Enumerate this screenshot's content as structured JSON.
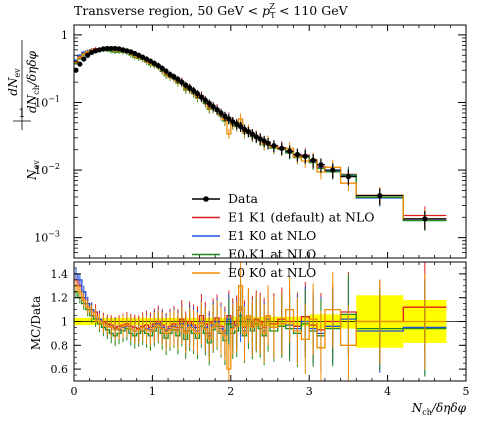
{
  "chart_data": {
    "type": "line",
    "title": "Transverse region, 50 GeV < p_T^Z < 110 GeV",
    "title_parts": {
      "prefix": "Transverse region, 50 GeV < ",
      "var": "p",
      "sub": "T",
      "sup": "Z",
      "suffix": " < 110 GeV"
    },
    "xlabel": "N_ch/δηδφ",
    "xlabel_parts": {
      "n": "N",
      "sub": "ch",
      "rest": "/δηδφ"
    },
    "ylabel": "1/N_ev dN_ev/dN_ch/δηδφ",
    "ylabel_parts": {
      "one": "1",
      "nev": "N",
      "nev_sub": "ev",
      "dnev": "dN",
      "dnev_sub": "ev",
      "dnch": "dN",
      "dnch_sub": "ch",
      "dnch_rest": "/δηδφ"
    },
    "ratio_ylabel": "MC/Data",
    "xlim": [
      0,
      5
    ],
    "ylim": [
      0.0005,
      1.4
    ],
    "ratio_ylim": [
      0.5,
      1.5
    ],
    "yscale": "log",
    "xticks": [
      "0",
      "1",
      "2",
      "3",
      "4",
      "5"
    ],
    "yticks": [
      {
        "value": 1,
        "label": "1"
      },
      {
        "value": 0.1,
        "label": "10",
        "exp": "−1"
      },
      {
        "value": 0.01,
        "label": "10",
        "exp": "−2"
      },
      {
        "value": 0.001,
        "label": "10",
        "exp": "−3"
      }
    ],
    "ratio_yticks": [
      "0.6",
      "0.8",
      "1",
      "1.2",
      "1.4"
    ],
    "legend": {
      "position": "center-right"
    },
    "bin_edges": [
      0.0,
      0.05,
      0.1,
      0.15,
      0.2,
      0.25,
      0.3,
      0.35,
      0.4,
      0.45,
      0.5,
      0.55,
      0.6,
      0.65,
      0.7,
      0.75,
      0.8,
      0.85,
      0.9,
      0.95,
      1.0,
      1.05,
      1.1,
      1.15,
      1.2,
      1.25,
      1.3,
      1.35,
      1.4,
      1.45,
      1.5,
      1.55,
      1.6,
      1.65,
      1.7,
      1.75,
      1.8,
      1.85,
      1.9,
      1.95,
      2.0,
      2.05,
      2.1,
      2.15,
      2.2,
      2.25,
      2.3,
      2.35,
      2.4,
      2.45,
      2.5,
      2.6,
      2.7,
      2.8,
      2.9,
      3.0,
      3.1,
      3.2,
      3.4,
      3.6,
      4.2,
      4.75
    ],
    "series": [
      {
        "name": "Data",
        "style": "points",
        "color": "#000000",
        "values": [
          0.3,
          0.37,
          0.44,
          0.5,
          0.55,
          0.58,
          0.6,
          0.62,
          0.63,
          0.63,
          0.63,
          0.62,
          0.6,
          0.58,
          0.56,
          0.53,
          0.5,
          0.47,
          0.44,
          0.41,
          0.38,
          0.35,
          0.32,
          0.29,
          0.26,
          0.24,
          0.22,
          0.2,
          0.18,
          0.165,
          0.15,
          0.135,
          0.12,
          0.108,
          0.097,
          0.087,
          0.078,
          0.07,
          0.063,
          0.057,
          0.052,
          0.048,
          0.044,
          0.04,
          0.037,
          0.034,
          0.031,
          0.029,
          0.027,
          0.025,
          0.023,
          0.021,
          0.019,
          0.017,
          0.016,
          0.014,
          0.012,
          0.01,
          0.008,
          0.0042,
          0.0019
        ]
      },
      {
        "name": "E1 K1 (default) at NLO",
        "style": "histo",
        "color": "#dd1e1e",
        "ratio": [
          1.35,
          1.3,
          1.2,
          1.15,
          1.1,
          1.08,
          1.02,
          1.0,
          0.98,
          0.97,
          0.95,
          0.96,
          0.97,
          0.98,
          0.96,
          0.95,
          0.94,
          0.96,
          0.97,
          0.95,
          0.98,
          1.0,
          0.97,
          0.93,
          0.96,
          0.98,
          0.95,
          1.02,
          0.92,
          1.0,
          0.97,
          0.95,
          1.05,
          0.98,
          0.9,
          1.0,
          1.03,
          0.96,
          0.92,
          1.05,
          0.98,
          1.0,
          1.1,
          0.95,
          1.05,
          0.98,
          1.02,
          1.0,
          0.95,
          1.05,
          0.98,
          1.02,
          1.0,
          0.96,
          1.04,
          0.97,
          0.93,
          1.0,
          1.08,
          1.0,
          1.12
        ]
      },
      {
        "name": "E1 K0 at NLO",
        "style": "histo",
        "color": "#1e4fdd",
        "ratio": [
          1.4,
          1.35,
          1.25,
          1.15,
          1.1,
          1.05,
          1.02,
          0.98,
          0.96,
          0.95,
          0.94,
          0.93,
          0.95,
          0.96,
          0.94,
          0.92,
          0.93,
          0.95,
          0.94,
          0.93,
          0.96,
          0.98,
          0.95,
          0.92,
          0.94,
          0.96,
          0.93,
          0.98,
          0.9,
          0.97,
          0.95,
          0.92,
          1.0,
          0.95,
          0.88,
          0.97,
          1.0,
          0.94,
          0.9,
          1.02,
          0.95,
          0.97,
          1.05,
          0.92,
          1.02,
          0.96,
          1.0,
          0.97,
          0.92,
          1.02,
          0.95,
          0.98,
          0.97,
          0.94,
          1.0,
          0.94,
          0.9,
          0.96,
          1.02,
          0.92,
          0.95
        ]
      },
      {
        "name": "E0 K1 at NLO",
        "style": "histo",
        "color": "#1e8a1e",
        "ratio": [
          1.25,
          1.2,
          1.15,
          1.1,
          1.05,
          1.02,
          0.98,
          0.95,
          0.93,
          0.9,
          0.88,
          0.9,
          0.92,
          0.94,
          0.9,
          0.88,
          0.9,
          0.92,
          0.9,
          0.88,
          0.92,
          0.95,
          0.9,
          0.86,
          0.9,
          0.93,
          0.88,
          0.95,
          0.85,
          0.92,
          0.9,
          0.86,
          0.96,
          0.9,
          0.82,
          0.93,
          0.96,
          0.9,
          0.84,
          0.98,
          0.9,
          0.92,
          1.12,
          0.88,
          1.0,
          0.92,
          0.98,
          0.94,
          0.88,
          1.0,
          0.92,
          0.96,
          0.94,
          0.9,
          0.98,
          0.92,
          0.88,
          0.94,
          1.06,
          0.94,
          0.94
        ]
      },
      {
        "name": "E0 K0 at NLO",
        "style": "histo",
        "color": "#f08c00",
        "ratio": [
          1.3,
          1.25,
          1.18,
          1.12,
          1.08,
          1.05,
          1.0,
          0.98,
          0.96,
          0.95,
          0.93,
          0.94,
          0.96,
          0.97,
          0.94,
          0.92,
          0.93,
          0.95,
          0.93,
          0.92,
          0.95,
          0.97,
          0.94,
          0.9,
          0.93,
          0.95,
          0.92,
          0.97,
          0.9,
          0.95,
          0.93,
          0.9,
          0.99,
          0.94,
          0.86,
          0.95,
          0.98,
          0.92,
          0.88,
          0.6,
          0.94,
          0.96,
          1.3,
          0.9,
          1.05,
          0.95,
          1.0,
          0.97,
          0.9,
          1.05,
          0.95,
          0.98,
          1.1,
          0.92,
          0.85,
          1.02,
          0.78,
          1.1,
          0.8,
          1.0,
          1.0
        ]
      }
    ],
    "ratio_band": [
      {
        "x0": 0.0,
        "x1": 2.0,
        "half": 0.03
      },
      {
        "x0": 2.0,
        "x1": 3.0,
        "half": 0.04
      },
      {
        "x0": 3.0,
        "x1": 3.6,
        "half": 0.06
      },
      {
        "x0": 3.6,
        "x1": 4.2,
        "half": 0.22
      },
      {
        "x0": 4.2,
        "x1": 4.75,
        "half": 0.18
      }
    ]
  }
}
